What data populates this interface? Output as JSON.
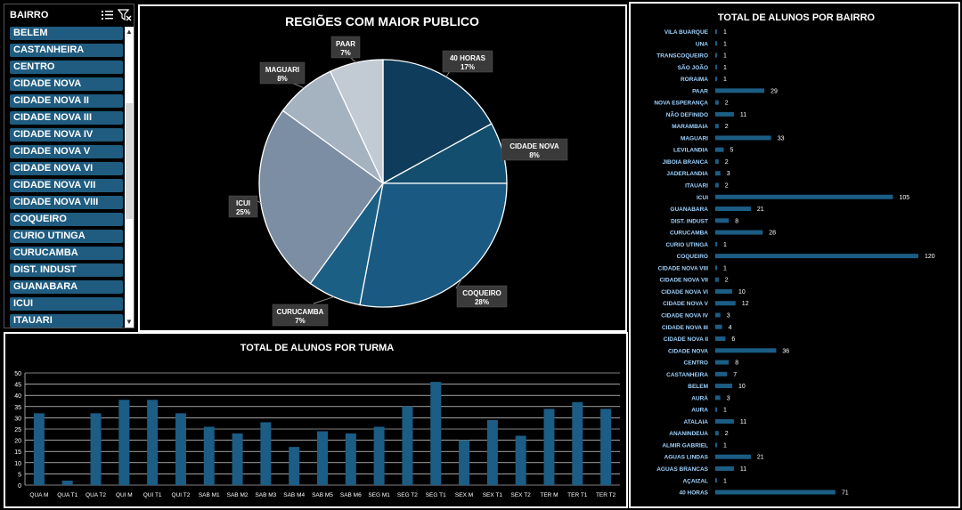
{
  "slicer": {
    "title": "BAIRRO",
    "items": [
      "BELEM",
      "CASTANHEIRA",
      "CENTRO",
      "CIDADE NOVA",
      "CIDADE NOVA II",
      "CIDADE NOVA III",
      "CIDADE NOVA IV",
      "CIDADE NOVA V",
      "CIDADE NOVA VI",
      "CIDADE NOVA VII",
      "CIDADE NOVA VIII",
      "COQUEIRO",
      "CURIO UTINGA",
      "CURUCAMBA",
      "DIST. INDUST",
      "GUANABARA",
      "ICUI",
      "ITAUARI"
    ],
    "icons": [
      "multi-select-icon",
      "clear-filter-icon"
    ]
  },
  "chart_data": [
    {
      "type": "pie",
      "title": "REGIÕES COM MAIOR PUBLICO",
      "labels": [
        "40 HORAS",
        "CIDADE NOVA",
        "COQUEIRO",
        "CURUCAMBA",
        "ICUI",
        "MAGUARI",
        "PAAR"
      ],
      "values": [
        17,
        8,
        28,
        7,
        25,
        8,
        7
      ],
      "data_labels": [
        "17%",
        "8%",
        "28%",
        "7%",
        "25%",
        "8%",
        "7%"
      ],
      "colors": [
        "#0f3c5a",
        "#134e6e",
        "#1a5a82",
        "#1c5f85",
        "#7c8ea3",
        "#a5b2c0",
        "#c2cad3"
      ]
    },
    {
      "type": "bar",
      "title": "TOTAL DE ALUNOS POR TURMA",
      "categories": [
        "QUA M",
        "QUA T1",
        "QUA T2",
        "QUI M",
        "QUI T1",
        "QUI T2",
        "SAB M1",
        "SAB M2",
        "SAB M3",
        "SAB M4",
        "SAB M5",
        "SAB M6",
        "SEG M1",
        "SEG T2",
        "SEG T1",
        "SEX M",
        "SEX T1",
        "SEX T2",
        "TER M",
        "TER T1",
        "TER T2"
      ],
      "values": [
        32,
        2,
        32,
        38,
        38,
        32,
        26,
        23,
        28,
        17,
        24,
        23,
        26,
        35,
        46,
        20,
        29,
        22,
        34,
        37,
        34
      ],
      "ylim": [
        0,
        50
      ],
      "yticks": [
        0,
        5,
        10,
        15,
        20,
        25,
        30,
        35,
        40,
        45,
        50
      ],
      "grid": true,
      "color": "#1b5d85"
    },
    {
      "type": "bar",
      "orientation": "horizontal",
      "title": "TOTAL DE ALUNOS POR BAIRRO",
      "categories": [
        "VILA BUARQUE",
        "UNA",
        "TRANSCOQUEIRO",
        "SÃO JOÃO",
        "RORAIMA",
        "PAAR",
        "NOVA ESPERANÇA",
        "NÃO DEFINIDO",
        "MARAMBAIA",
        "MAGUARI",
        "LEVILANDIA",
        "JIBOIA BRANCA",
        "JADERLANDIA",
        "ITAUARI",
        "ICUI",
        "GUANABARA",
        "DIST. INDUST",
        "CURUCAMBA",
        "CURIO UTINGA",
        "COQUEIRO",
        "CIDADE NOVA VIII",
        "CIDADE NOVA VII",
        "CIDADE NOVA VI",
        "CIDADE NOVA V",
        "CIDADE NOVA IV",
        "CIDADE NOVA III",
        "CIDADE NOVA II",
        "CIDADE NOVA",
        "CENTRO",
        "CASTANHEIRA",
        "BELEM",
        "AURÁ",
        "AURA",
        "ATALAIA",
        "ANANINDEUA",
        "ALMIR GABRIEL",
        "AGUAS LINDAS",
        "AGUAS BRANCAS",
        "AÇAIZAL",
        "40 HORAS"
      ],
      "values": [
        1,
        1,
        1,
        1,
        1,
        29,
        2,
        11,
        2,
        33,
        5,
        2,
        3,
        2,
        105,
        21,
        8,
        28,
        1,
        120,
        1,
        2,
        10,
        12,
        3,
        4,
        6,
        36,
        8,
        7,
        10,
        3,
        1,
        11,
        2,
        1,
        21,
        11,
        1,
        71
      ],
      "color": "#1b5d85",
      "label_color": "#9fd3ff"
    }
  ]
}
